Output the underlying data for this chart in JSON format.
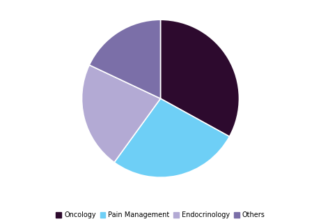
{
  "labels": [
    "Oncology",
    "Pain Management",
    "Endocrinology",
    "Others"
  ],
  "values": [
    33,
    27,
    22,
    18
  ],
  "colors": [
    "#2d0a2e",
    "#6ecff6",
    "#b3aad4",
    "#7b6fa8"
  ],
  "startangle": 90,
  "legend_labels": [
    "Oncology",
    "Pain Management",
    "Endocrinology",
    "Others"
  ],
  "background_color": "#ffffff",
  "wedge_edge_color": "#ffffff",
  "wedge_linewidth": 1.2
}
